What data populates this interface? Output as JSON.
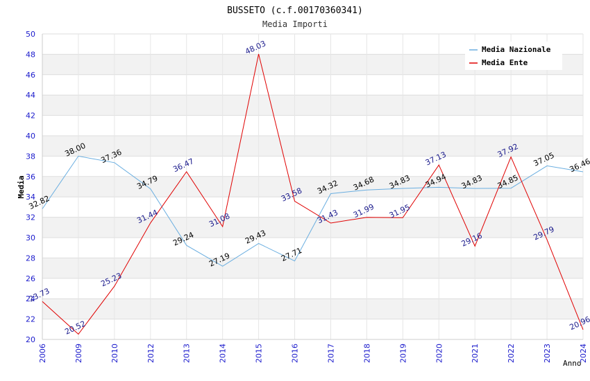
{
  "chart_data": {
    "type": "line",
    "title": "BUSSETO (c.f.00170360341)",
    "subtitle": "Media Importi",
    "xlabel": "Anno",
    "ylabel": "Media",
    "ylim": [
      20,
      50
    ],
    "ytick_step": 2,
    "grid": true,
    "legend_position": "top-right",
    "categories": [
      "2006",
      "2009",
      "2010",
      "2012",
      "2013",
      "2014",
      "2015",
      "2016",
      "2017",
      "2018",
      "2019",
      "2020",
      "2021",
      "2022",
      "2023",
      "2024"
    ],
    "series": [
      {
        "name": "Media Nazionale",
        "color": "#6aaee0",
        "label_color": "#000000",
        "values": [
          32.82,
          38.0,
          37.36,
          34.79,
          29.24,
          27.19,
          29.43,
          27.71,
          34.32,
          34.68,
          34.83,
          34.94,
          34.83,
          34.85,
          37.05,
          36.46
        ],
        "labels": [
          "32.82",
          "38.00",
          "37.36",
          "34.79",
          "29.24",
          "27.19",
          "29.43",
          "27.71",
          "34.32",
          "34.68",
          "34.83",
          "34.94",
          "34.83",
          "34.85",
          "37.05",
          "36.46"
        ]
      },
      {
        "name": "Media Ente",
        "color": "#e00000",
        "label_color": "#1a1a8c",
        "values": [
          23.73,
          20.52,
          25.23,
          31.44,
          36.47,
          31.08,
          48.03,
          33.58,
          31.43,
          31.99,
          31.95,
          37.13,
          29.16,
          37.92,
          29.79,
          20.96
        ],
        "labels": [
          "23.73",
          "20.52",
          "25.23",
          "31.44",
          "36.47",
          "31.08",
          "48.03",
          "33.58",
          "31.43",
          "31.99",
          "31.95",
          "37.13",
          "29.16",
          "37.92",
          "29.79",
          "20.96"
        ]
      }
    ]
  }
}
